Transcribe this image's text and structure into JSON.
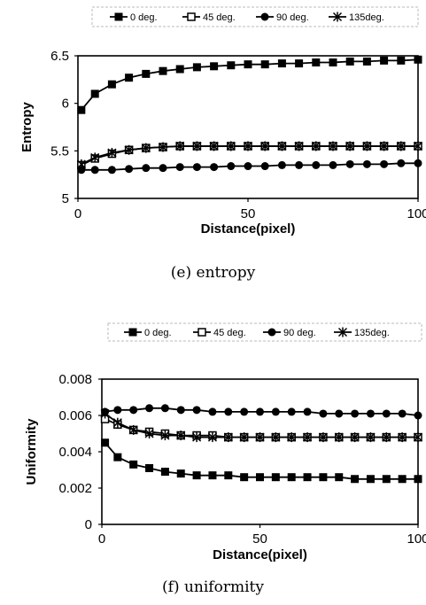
{
  "chart_data": [
    {
      "type": "line",
      "caption": "(e) entropy",
      "xlabel": "Distance(pixel)",
      "ylabel": "Entropy",
      "xlim": [
        0,
        100
      ],
      "ylim": [
        5,
        6.5
      ],
      "xticks": [
        "0",
        "50",
        "100"
      ],
      "yticks": [
        "5",
        "5.5",
        "6",
        "6.5"
      ],
      "legend_position": "top",
      "grid": false,
      "x": [
        1,
        5,
        10,
        15,
        20,
        25,
        30,
        35,
        40,
        45,
        50,
        55,
        60,
        65,
        70,
        75,
        80,
        85,
        90,
        95,
        100
      ],
      "series": [
        {
          "name": "0 deg.",
          "marker": "square-filled",
          "values": [
            5.93,
            6.1,
            6.2,
            6.27,
            6.31,
            6.34,
            6.36,
            6.38,
            6.39,
            6.4,
            6.41,
            6.41,
            6.42,
            6.42,
            6.43,
            6.43,
            6.44,
            6.44,
            6.45,
            6.45,
            6.46
          ]
        },
        {
          "name": "45 deg.",
          "marker": "square-open",
          "values": [
            5.35,
            5.42,
            5.47,
            5.51,
            5.53,
            5.54,
            5.55,
            5.55,
            5.55,
            5.55,
            5.55,
            5.55,
            5.55,
            5.55,
            5.55,
            5.55,
            5.55,
            5.55,
            5.55,
            5.55,
            5.55
          ]
        },
        {
          "name": "90 deg.",
          "marker": "circle-filled",
          "values": [
            5.3,
            5.3,
            5.3,
            5.31,
            5.32,
            5.32,
            5.33,
            5.33,
            5.33,
            5.34,
            5.34,
            5.34,
            5.35,
            5.35,
            5.35,
            5.35,
            5.36,
            5.36,
            5.36,
            5.37,
            5.37
          ]
        },
        {
          "name": "135deg.",
          "marker": "asterisk",
          "values": [
            5.36,
            5.43,
            5.48,
            5.51,
            5.53,
            5.54,
            5.55,
            5.55,
            5.55,
            5.55,
            5.55,
            5.55,
            5.55,
            5.55,
            5.55,
            5.55,
            5.55,
            5.55,
            5.55,
            5.55,
            5.55
          ]
        }
      ]
    },
    {
      "type": "line",
      "caption": "(f) uniformity",
      "xlabel": "Distance(pixel)",
      "ylabel": "Uniformity",
      "xlim": [
        0,
        100
      ],
      "ylim": [
        0,
        0.008
      ],
      "xticks": [
        "0",
        "50",
        "100"
      ],
      "yticks": [
        "0",
        "0.002",
        "0.004",
        "0.006",
        "0.008"
      ],
      "legend_position": "top",
      "grid": false,
      "x": [
        1,
        5,
        10,
        15,
        20,
        25,
        30,
        35,
        40,
        45,
        50,
        55,
        60,
        65,
        70,
        75,
        80,
        85,
        90,
        95,
        100
      ],
      "series": [
        {
          "name": "0 deg.",
          "marker": "square-filled",
          "values": [
            0.0045,
            0.0037,
            0.0033,
            0.0031,
            0.0029,
            0.0028,
            0.0027,
            0.0027,
            0.0027,
            0.0026,
            0.0026,
            0.0026,
            0.0026,
            0.0026,
            0.0026,
            0.0026,
            0.0025,
            0.0025,
            0.0025,
            0.0025,
            0.0025
          ]
        },
        {
          "name": "45 deg.",
          "marker": "square-open",
          "values": [
            0.0058,
            0.0055,
            0.0052,
            0.0051,
            0.005,
            0.0049,
            0.0049,
            0.0049,
            0.0048,
            0.0048,
            0.0048,
            0.0048,
            0.0048,
            0.0048,
            0.0048,
            0.0048,
            0.0048,
            0.0048,
            0.0048,
            0.0048,
            0.0048
          ]
        },
        {
          "name": "90 deg.",
          "marker": "circle-filled",
          "values": [
            0.0062,
            0.0063,
            0.0063,
            0.0064,
            0.0064,
            0.0063,
            0.0063,
            0.0062,
            0.0062,
            0.0062,
            0.0062,
            0.0062,
            0.0062,
            0.0062,
            0.0061,
            0.0061,
            0.0061,
            0.0061,
            0.0061,
            0.0061,
            0.006
          ]
        },
        {
          "name": "135deg.",
          "marker": "asterisk",
          "values": [
            0.0061,
            0.0056,
            0.0052,
            0.005,
            0.0049,
            0.0049,
            0.0048,
            0.0048,
            0.0048,
            0.0048,
            0.0048,
            0.0048,
            0.0048,
            0.0048,
            0.0048,
            0.0048,
            0.0048,
            0.0048,
            0.0048,
            0.0048,
            0.0048
          ]
        }
      ]
    }
  ]
}
